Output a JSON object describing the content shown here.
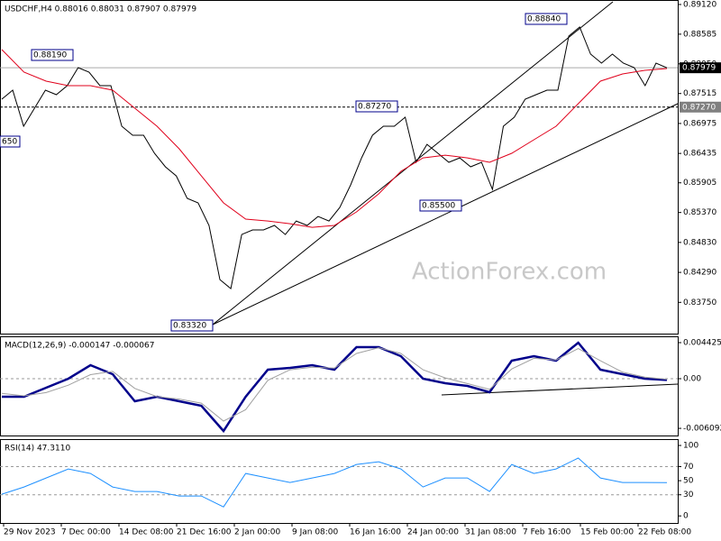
{
  "chart_data": [
    {
      "type": "line",
      "title": "USDCHF,H4 0.88016 0.88031 0.87907 0.87979",
      "watermark": "ActionForex.com",
      "ylim": [
        0.83186,
        0.89201
      ],
      "yticks": [
        {
          "value": 0.8912,
          "label": "0.89120"
        },
        {
          "value": 0.88585,
          "label": "0.88585"
        },
        {
          "value": 0.8805,
          "label": "0.88050"
        },
        {
          "value": 0.87515,
          "label": "0.87515"
        },
        {
          "value": 0.86975,
          "label": "0.86975"
        },
        {
          "value": 0.86435,
          "label": "0.86435"
        },
        {
          "value": 0.85905,
          "label": "0.85905"
        },
        {
          "value": 0.8537,
          "label": "0.85370"
        },
        {
          "value": 0.8483,
          "label": "0.84830"
        },
        {
          "value": 0.8429,
          "label": "0.84290"
        },
        {
          "value": 0.8375,
          "label": "0.83750"
        }
      ],
      "hlines": [
        {
          "value": 0.87979,
          "label": "0.87979",
          "color": "#000000"
        },
        {
          "value": 0.8727,
          "label": "0.87270",
          "color": "#808080"
        }
      ],
      "annotations": [
        "0.88190",
        "0.87270",
        "0.88840",
        "0.85500",
        "0.83320",
        "650"
      ],
      "series": [
        {
          "name": "Close",
          "color": "#000000",
          "values": [
            0.87412,
            0.87575,
            0.86925,
            0.8725,
            0.87575,
            0.87494,
            0.87657,
            0.87982,
            0.879,
            0.87657,
            0.87657,
            0.86925,
            0.86762,
            0.86762,
            0.86437,
            0.86193,
            0.8603,
            0.85624,
            0.85543,
            0.85136,
            0.8416,
            0.83998,
            0.84973,
            0.85055,
            0.85055,
            0.85136,
            0.84973,
            0.85217,
            0.85136,
            0.85298,
            0.85217,
            0.85461,
            0.85868,
            0.86355,
            0.86762,
            0.86925,
            0.86925,
            0.87087,
            0.86274,
            0.86599,
            0.86437,
            0.86274,
            0.86355,
            0.86193,
            0.86274,
            0.85786,
            0.86925,
            0.87087,
            0.87412,
            0.87494,
            0.87575,
            0.87575,
            0.88551,
            0.88713,
            0.88225,
            0.88063,
            0.88225,
            0.88063,
            0.87982,
            0.87657,
            0.88063,
            0.87979
          ]
        },
        {
          "name": "MA",
          "color": "#e0001b",
          "values": [
            0.88307,
            0.879,
            0.87738,
            0.87657,
            0.87657,
            0.87575,
            0.8725,
            0.86925,
            0.86518,
            0.8603,
            0.85543,
            0.8525,
            0.85217,
            0.85168,
            0.85103,
            0.85136,
            0.8538,
            0.85705,
            0.86112,
            0.86355,
            0.86404,
            0.86355,
            0.86274,
            0.86437,
            0.86681,
            0.86925,
            0.87331,
            0.87738,
            0.87868,
            0.87933,
            0.87965
          ]
        }
      ]
    },
    {
      "type": "line",
      "title": "MACD(12,26,9) -0.000147 -0.000067",
      "ylim": [
        -0.00697,
        0.0052
      ],
      "yticks": [
        0.004425,
        {
          "value": 0,
          "label": "0.00"
        },
        -0.006092
      ],
      "dashed_levels": [
        0
      ],
      "series": [
        {
          "name": "MACD",
          "color": "#00008b",
          "values": [
            -0.00221,
            -0.00221,
            -0.00111,
            0,
            0.00166,
            0.00055,
            -0.00277,
            -0.00221,
            -0.00277,
            -0.00332,
            -0.00642,
            -0.00221,
            0.00111,
            0.00133,
            0.00166,
            0.00111,
            0.00387,
            0.00387,
            0.00277,
            0,
            -0.00055,
            -0.00088,
            -0.00166,
            0.00221,
            0.00277,
            0.00221,
            0.00442,
            0.00111,
            0.00055,
            0,
            -0.00015
          ]
        },
        {
          "name": "Signal",
          "color": "#a0a0a0",
          "values": [
            -0.0018,
            -0.0021,
            -0.0017,
            -0.0008,
            0.0005,
            0.0009,
            -0.0012,
            -0.0022,
            -0.0025,
            -0.003,
            -0.0052,
            -0.0038,
            -0.0002,
            0.0011,
            0.0014,
            0.0013,
            0.0031,
            0.0038,
            0.0031,
            0.0011,
            0.0001,
            -0.0006,
            -0.0013,
            0.0012,
            0.0025,
            0.0023,
            0.0037,
            0.0022,
            0.0008,
            0.0002,
            -7e-05
          ]
        }
      ]
    },
    {
      "type": "line",
      "title": "RSI(14) 47.3110",
      "ylim": [
        -10,
        109
      ],
      "yticks": [
        100,
        70,
        50,
        30,
        0
      ],
      "dashed_levels": [
        70,
        30
      ],
      "x_labels": [
        "29 Nov 2023",
        "7 Dec 00:00",
        "14 Dec 08:00",
        "21 Dec 16:00",
        "2 Jan 00:00",
        "9 Jan 08:00",
        "16 Jan 16:00",
        "24 Jan 00:00",
        "31 Jan 08:00",
        "7 Feb 16:00",
        "15 Feb 00:00",
        "22 Feb 08:00"
      ],
      "series": [
        {
          "name": "RSI",
          "color": "#1e90ff",
          "values": [
            30.8,
            41.0,
            53.8,
            66.7,
            60.3,
            41.0,
            34.6,
            34.6,
            28.2,
            28.2,
            12.8,
            60.3,
            53.8,
            47.4,
            53.8,
            60.3,
            73.1,
            76.9,
            66.7,
            41.0,
            53.8,
            53.8,
            34.6,
            73.1,
            60.3,
            66.7,
            82.1,
            53.8,
            47.4,
            47.4,
            47.311
          ]
        }
      ]
    }
  ]
}
